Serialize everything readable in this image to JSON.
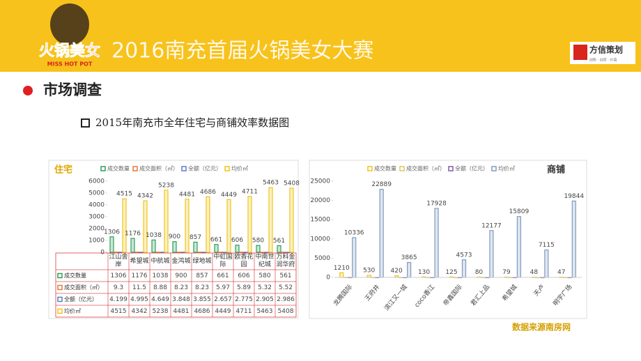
{
  "header": {
    "logo": "火锅美女",
    "logo_sub": "MISS HOT POT",
    "title": "2016南充首届火锅美女大赛",
    "brand": "方信策划",
    "brand_sub": "创新 · 创造 · 价值"
  },
  "section": "市场调查",
  "subtitle": "2015年南充市全年住宅与商铺效率数据图",
  "source": "数据来源南房网",
  "chart_data": [
    {
      "type": "bar",
      "title": "住宅",
      "table": true,
      "categories": [
        "江山舍岸",
        "希望城",
        "中航城",
        "金鸿城",
        "绿地城",
        "中虹国际",
        "欧香花园",
        "中南世纪城",
        "万科金润华府"
      ],
      "series": [
        {
          "name": "成交数量",
          "color": "#2e9e5b",
          "data_labels": true,
          "values": [
            1306,
            1176,
            1038,
            900,
            857,
            661,
            606,
            580,
            561
          ]
        },
        {
          "name": "成交面积（㎡）",
          "color": "#e07b39",
          "data_labels": false,
          "values": [
            9.3,
            11.5,
            8.88,
            8.23,
            8.23,
            5.97,
            5.89,
            5.32,
            5.52
          ]
        },
        {
          "name": "全额（亿元）",
          "color": "#5b7fc4",
          "data_labels": false,
          "values": [
            4.199,
            4.995,
            4.649,
            3.848,
            3.855,
            2.657,
            2.775,
            2.905,
            2.986
          ]
        },
        {
          "name": "均价㎡",
          "color": "#f0c419",
          "data_labels": true,
          "values": [
            4515,
            4342,
            5238,
            4481,
            4686,
            4449,
            4711,
            5463,
            5408
          ]
        }
      ],
      "ylim": [
        0,
        6000
      ],
      "yticks": [
        0,
        1000,
        2000,
        3000,
        4000,
        5000,
        6000
      ]
    },
    {
      "type": "bar",
      "title": "商铺",
      "table": false,
      "categories": [
        "龙腾国际",
        "王府井",
        "滨江又一城",
        "coco香江",
        "帝鑫国际",
        "君汇上品",
        "希望城",
        "天卢",
        "明宇广场"
      ],
      "series": [
        {
          "name": "成交数量",
          "color": "#f0c419",
          "data_labels": true,
          "values": [
            1210,
            530,
            420,
            130,
            125,
            80,
            79,
            48,
            47
          ]
        },
        {
          "name": "成交面积（㎡）",
          "color": "#d9c66a",
          "data_labels": false,
          "values": [
            8,
            4,
            3,
            1,
            1,
            1,
            1,
            0.5,
            0.5
          ]
        },
        {
          "name": "全额（亿元）",
          "color": "#7a5ea8",
          "data_labels": false,
          "values": [
            6,
            3,
            2,
            1,
            1,
            1,
            1,
            0.5,
            0.5
          ]
        },
        {
          "name": "均价㎡",
          "color": "#7f9cc0",
          "data_labels": true,
          "values": [
            10336,
            22889,
            3865,
            17928,
            4573,
            12177,
            15809,
            7115,
            19844
          ]
        }
      ],
      "ylim": [
        0,
        25000
      ],
      "yticks": [
        0,
        5000,
        10000,
        15000,
        20000,
        25000
      ]
    }
  ]
}
